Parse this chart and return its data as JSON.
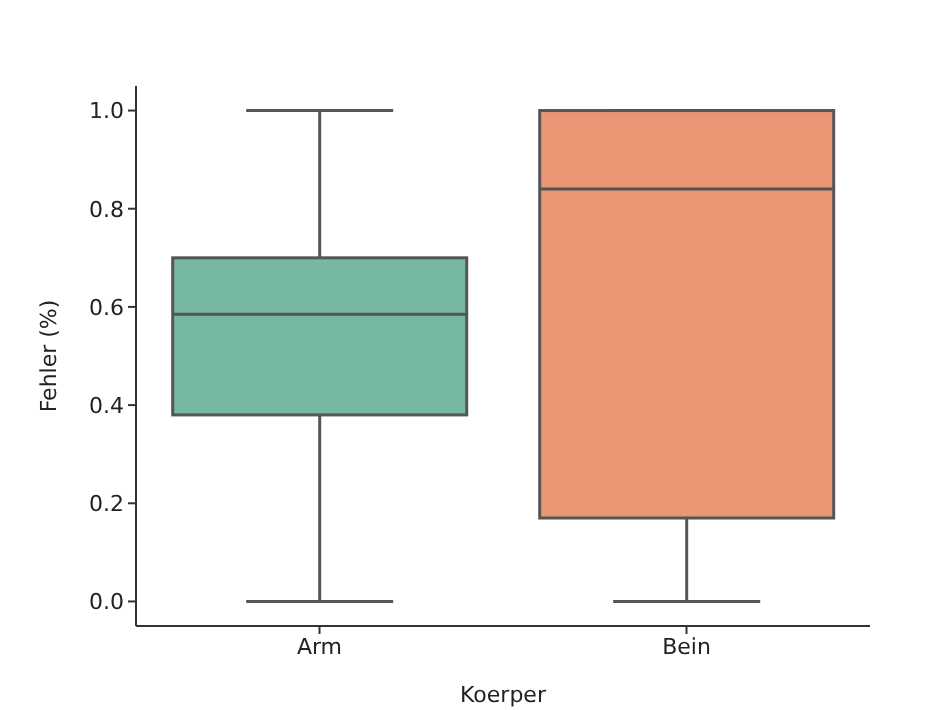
{
  "chart_data": {
    "type": "box",
    "xlabel": "Koerper",
    "ylabel": "Fehler (%)",
    "categories": [
      "Arm",
      "Bein"
    ],
    "colors": [
      "#76b8a2",
      "#e99675"
    ],
    "boxes": [
      {
        "low": 0,
        "q1": 0.38,
        "median": 0.585,
        "q3": 0.7,
        "high": 1
      },
      {
        "low": 0,
        "q1": 0.17,
        "median": 0.84,
        "q3": 1,
        "high": 1
      }
    ],
    "ylim": [
      -0.05,
      1.05
    ],
    "yticks": [
      {
        "value": 0,
        "label": "0.0"
      },
      0.2,
      0.4,
      0.6,
      0.8,
      {
        "value": 1,
        "label": "1.0"
      }
    ]
  }
}
